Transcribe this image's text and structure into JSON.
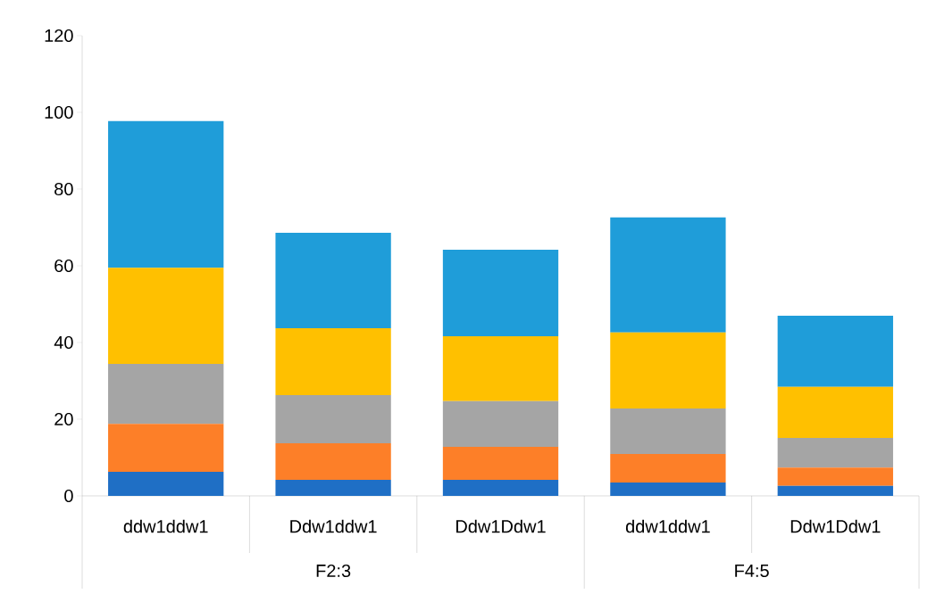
{
  "chart_data": {
    "type": "bar",
    "stacked": true,
    "categories": [
      "ddw1ddw1",
      "Ddw1ddw1",
      "Ddw1Ddw1",
      "ddw1ddw1",
      "Ddw1Ddw1"
    ],
    "series": [
      {
        "color": "#1f6fc5",
        "values": [
          6.3,
          4.2,
          4.2,
          3.5,
          2.6
        ]
      },
      {
        "color": "#fd7f28",
        "values": [
          12.5,
          9.5,
          8.6,
          7.4,
          4.8
        ]
      },
      {
        "color": "#a5a5a5",
        "values": [
          15.6,
          12.6,
          11.9,
          11.9,
          7.7
        ]
      },
      {
        "color": "#ffc000",
        "values": [
          25.1,
          17.4,
          16.9,
          19.8,
          13.3
        ]
      },
      {
        "color": "#1f9dd9",
        "values": [
          38.2,
          24.9,
          22.6,
          30.0,
          18.6
        ]
      }
    ],
    "ylim": [
      0,
      120
    ],
    "yticks": [
      0,
      20,
      40,
      60,
      80,
      100,
      120
    ],
    "grid": false,
    "annotations": [
      "F2:3",
      "F4:5"
    ]
  }
}
